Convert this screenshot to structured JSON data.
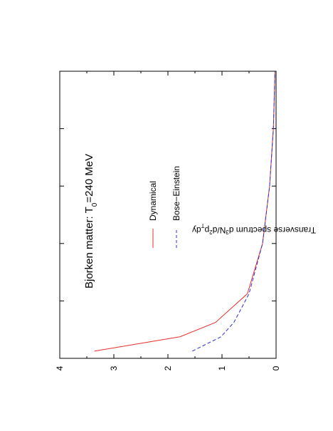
{
  "chart_data": {
    "type": "line",
    "orientation": "rotated-90-ccw",
    "ylabel": "Transverse spectrum d³N/d²p₝dy",
    "ylabel_parts": {
      "pre": "Transverse spectrum d",
      "sup": "3",
      "mid": "N/d",
      "sup2": "2",
      "mid2": "p",
      "sub": "T",
      "post": "dy"
    },
    "ylim": [
      0,
      4
    ],
    "y_ticks": [
      0,
      1,
      2,
      3,
      4
    ],
    "xlim": [
      0,
      10
    ],
    "annotation": {
      "pre": "Bjorken matter: T",
      "sub": "0",
      "post": "=240 MeV"
    },
    "legend_placement": "top-center",
    "series": [
      {
        "name": "Dynamical",
        "color": "#e8302a",
        "dash": "solid",
        "x": [
          0.25,
          0.75,
          1.25,
          2.25,
          4.0,
          6.0,
          8.0,
          10.0
        ],
        "y": [
          3.36,
          1.78,
          1.12,
          0.53,
          0.25,
          0.12,
          0.05,
          0.02
        ]
      },
      {
        "name": "Bose−Einstein",
        "color": "#2c2ce0",
        "dash": "dashed",
        "x": [
          0.25,
          0.75,
          1.25,
          2.25,
          4.0,
          6.0,
          8.0,
          10.0
        ],
        "y": [
          1.55,
          1.02,
          0.78,
          0.5,
          0.25,
          0.12,
          0.05,
          0.02
        ]
      }
    ]
  }
}
